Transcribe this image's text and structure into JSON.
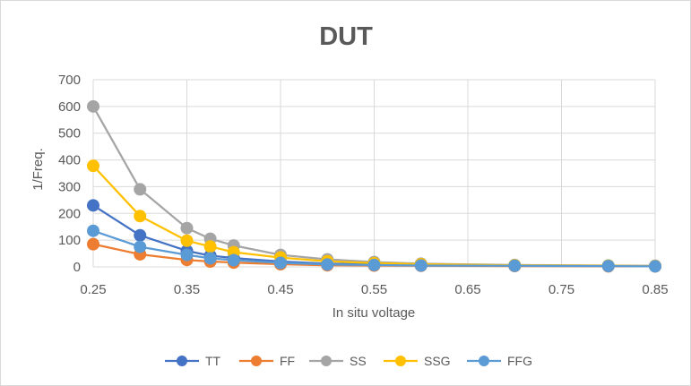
{
  "chart_data": {
    "type": "line",
    "title": "DUT",
    "xlabel": "In situ voltage",
    "ylabel": "1/Freq.",
    "xlim": [
      0.25,
      0.85
    ],
    "ylim": [
      0,
      700
    ],
    "x_ticks": [
      "0.25",
      "0.35",
      "0.45",
      "0.55",
      "0.65",
      "0.75",
      "0.85"
    ],
    "y_ticks": [
      "0",
      "100",
      "200",
      "300",
      "400",
      "500",
      "600",
      "700"
    ],
    "grid": true,
    "legend_position": "bottom",
    "x": [
      0.25,
      0.3,
      0.35,
      0.375,
      0.4,
      0.45,
      0.5,
      0.55,
      0.6,
      0.7,
      0.8,
      0.85
    ],
    "series": [
      {
        "name": "TT",
        "color": "#4472C4",
        "values": [
          230,
          118,
          60,
          42,
          33,
          20,
          12,
          9,
          7,
          5,
          4,
          3
        ]
      },
      {
        "name": "FF",
        "color": "#ED7D31",
        "values": [
          85,
          47,
          26,
          20,
          16,
          10,
          6,
          5,
          4,
          3,
          2,
          2
        ]
      },
      {
        "name": "SS",
        "color": "#A5A5A5",
        "values": [
          600,
          290,
          145,
          105,
          80,
          45,
          28,
          18,
          12,
          7,
          5,
          4
        ]
      },
      {
        "name": "SSG",
        "color": "#FFC000",
        "values": [
          378,
          190,
          98,
          76,
          55,
          35,
          21,
          14,
          10,
          6,
          4,
          3
        ]
      },
      {
        "name": "FFG",
        "color": "#5B9BD5",
        "values": [
          135,
          75,
          45,
          32,
          25,
          15,
          9,
          7,
          5,
          4,
          3,
          2
        ]
      }
    ]
  }
}
